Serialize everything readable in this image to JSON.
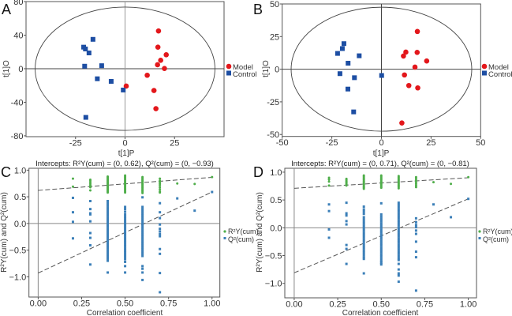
{
  "chart_data": [
    {
      "panel": "A",
      "type": "scatter",
      "xlabel": "t[1]P",
      "ylabel": "t[1]O",
      "xlim": [
        -50,
        50
      ],
      "ylim": [
        -81,
        80
      ],
      "xticks": [
        -25,
        0,
        25
      ],
      "yticks": [
        80,
        40,
        0,
        -40,
        -80
      ],
      "ellipse": {
        "rx": 45.4,
        "ry": 73.5
      },
      "legend": "right",
      "series": [
        {
          "name": "Model",
          "color": "#e3171b",
          "marker": "circle",
          "points": [
            [
              16.9,
              45
            ],
            [
              16.6,
              25.7
            ],
            [
              20.8,
              16.6
            ],
            [
              18.0,
              10
            ],
            [
              16.4,
              4.7
            ],
            [
              19.9,
              0.3
            ],
            [
              11.2,
              -7.8
            ],
            [
              0.6,
              -20.7
            ],
            [
              14.6,
              -26
            ],
            [
              15.6,
              -47.6
            ]
          ]
        },
        {
          "name": "Control",
          "color": "#1d4ea3",
          "marker": "square",
          "points": [
            [
              -20.9,
              25.7
            ],
            [
              -20.0,
              23.5
            ],
            [
              -18.2,
              18.8
            ],
            [
              -16.2,
              35
            ],
            [
              -20.4,
              3.0
            ],
            [
              -11.8,
              3.6
            ],
            [
              -14.0,
              -12
            ],
            [
              -7.0,
              -15.1
            ],
            [
              -0.9,
              -25.4
            ],
            [
              -19.8,
              -58
            ]
          ]
        }
      ]
    },
    {
      "panel": "B",
      "type": "scatter",
      "xlabel": "t[1]P",
      "ylabel": "t[1]O",
      "xlim": [
        -50,
        50
      ],
      "ylim": [
        -51.5,
        50
      ],
      "xticks": [
        -50,
        -25,
        0,
        25,
        50
      ],
      "yticks": [
        50,
        25,
        0,
        -25,
        -50
      ],
      "ellipse": {
        "rx": 45.5,
        "ry": 47.5
      },
      "legend": "right",
      "series": [
        {
          "name": "Model",
          "color": "#e3171b",
          "marker": "circle",
          "points": [
            [
              18.1,
              28.9
            ],
            [
              12.3,
              13.1
            ],
            [
              11.1,
              10.1
            ],
            [
              18.0,
              12.9
            ],
            [
              22.8,
              6.3
            ],
            [
              16.9,
              1.6
            ],
            [
              11.6,
              -4.4
            ],
            [
              13.8,
              -12.5
            ],
            [
              18.3,
              -14.3
            ],
            [
              10.3,
              -41.2
            ]
          ]
        },
        {
          "name": "Control",
          "color": "#1d4ea3",
          "marker": "square",
          "points": [
            [
              -22.1,
              12.1
            ],
            [
              -19.7,
              15.8
            ],
            [
              -18.9,
              19.6
            ],
            [
              -11.2,
              10.3
            ],
            [
              -16.8,
              4.6
            ],
            [
              -20.9,
              -3.4
            ],
            [
              -13.6,
              -6.5
            ],
            [
              -16.9,
              -15.2
            ],
            [
              -14.0,
              -32.7
            ],
            [
              0.1,
              -4.8
            ]
          ]
        }
      ]
    },
    {
      "panel": "C",
      "type": "scatter",
      "title": "Intercepts: R²Y(cum) = (0, 0.62), Q²(cum) = (0, −0.93)",
      "xlabel": "Correlation coefficient",
      "ylabel": "R²Y(cum) and Q²(cum)",
      "xlim": [
        -0.053,
        1.045
      ],
      "ylim": [
        -1.38,
        1.035
      ],
      "xticks": [
        "0.00",
        "0.25",
        "0.50",
        "0.75",
        "1.00"
      ],
      "yticks": [
        "1.0",
        "0.5",
        "0.0",
        "−0.5",
        "−1.0"
      ],
      "legend": "right",
      "lines": [
        {
          "name": "R²Y(cum) regression",
          "from": [
            0,
            0.62
          ],
          "to": [
            1,
            0.865
          ]
        },
        {
          "name": "Q²(cum) regression",
          "from": [
            0,
            -0.93
          ],
          "to": [
            1,
            0.59
          ]
        }
      ],
      "series": [
        {
          "name": "R²Y(cum)",
          "color": "#4fae4a",
          "marker": "circle",
          "columns": {
            "0.2": [
              0.84,
              0.69
            ],
            "0.3": [
              0.82,
              0.8,
              0.77,
              0.74,
              0.71,
              0.68,
              0.62
            ],
            "0.4": [
              0.88,
              0.86,
              0.84,
              0.82,
              0.8,
              0.78,
              0.76,
              0.74,
              0.72,
              0.7,
              0.68,
              0.66,
              0.64,
              0.62,
              0.6,
              0.58
            ],
            "0.5": [
              0.9,
              0.88,
              0.86,
              0.84,
              0.82,
              0.8,
              0.78,
              0.76,
              0.74,
              0.72,
              0.7,
              0.68,
              0.66,
              0.64,
              0.62,
              0.6,
              0.58
            ],
            "0.6": [
              0.87,
              0.85,
              0.83,
              0.81,
              0.79,
              0.77,
              0.75,
              0.73,
              0.71,
              0.69,
              0.67,
              0.65,
              0.63,
              0.61,
              0.59,
              0.57
            ],
            "0.7": [
              0.84,
              0.8,
              0.78,
              0.75,
              0.72,
              0.68,
              0.64,
              0.6,
              0.58
            ],
            "0.8": [
              0.75
            ],
            "0.9": [
              0.74
            ],
            "1.0": [
              0.87
            ]
          }
        },
        {
          "name": "Q²(cum)",
          "color": "#3b7fb8",
          "marker": "square",
          "columns": {
            "0.2": [
              0.48,
              0.21,
              0.03,
              -0.28
            ],
            "0.3": [
              0.42,
              0.27,
              0.19,
              0.17,
              0.04,
              -0.18,
              -0.27,
              -0.41,
              -0.77
            ],
            "0.4": [
              0.42,
              0.38,
              0.34,
              0.3,
              0.26,
              0.22,
              0.18,
              0.14,
              0.1,
              0.06,
              0.02,
              -0.02,
              -0.06,
              -0.1,
              -0.14,
              -0.18,
              -0.22,
              -0.26,
              -0.3,
              -0.34,
              -0.38,
              -0.42,
              -0.46,
              -0.5,
              -0.54,
              -0.58,
              -0.62,
              -0.66,
              -0.7,
              -0.92
            ],
            "0.5": [
              0.31,
              0.27,
              0.22,
              0.17,
              0.13,
              0.09,
              0.05,
              0.01,
              -0.03,
              -0.07,
              -0.11,
              -0.15,
              -0.19,
              -0.23,
              -0.27,
              -0.31,
              -0.35,
              -0.39,
              -0.43,
              -0.47,
              -0.51,
              -0.55,
              -0.59,
              -0.63,
              -0.67,
              -0.72,
              -0.8,
              -0.92
            ],
            "0.6": [
              0.49,
              0.31,
              0.27,
              0.23,
              0.19,
              0.15,
              0.11,
              0.07,
              0.03,
              -0.01,
              -0.05,
              -0.09,
              -0.13,
              -0.17,
              -0.21,
              -0.25,
              -0.29,
              -0.33,
              -0.37,
              -0.41,
              -0.45,
              -0.49,
              -0.53,
              -0.57,
              -0.61,
              -0.8,
              -0.85,
              -0.92,
              -1.06
            ],
            "0.7": [
              0.38,
              0.21,
              0.1,
              -0.02,
              -0.1,
              -0.15,
              -0.2,
              -0.24,
              -0.48,
              -0.57,
              -0.93,
              -1.29
            ],
            "0.8": [
              0.47
            ],
            "0.9": [
              0.24
            ],
            "1.0": [
              0.59
            ]
          }
        }
      ]
    },
    {
      "panel": "D",
      "type": "scatter",
      "title": "Intercepts: R²Y(cum) = (0, 0.71), Q²(cum) = (0, −0.81)",
      "xlabel": "Correlation coefficient",
      "ylabel": "R²Y(cum) and Q²(cum)",
      "xlim": [
        -0.054,
        1.047
      ],
      "ylim": [
        -1.26,
        1.07
      ],
      "xticks": [
        "0.00",
        "0.25",
        "0.50",
        "0.75",
        "1.00"
      ],
      "yticks": [
        "1.0",
        "0.5",
        "0.0",
        "−0.5",
        "−1.0"
      ],
      "legend": "right",
      "lines": [
        {
          "name": "R²Y(cum) regression",
          "from": [
            0,
            0.71
          ],
          "to": [
            1,
            0.9
          ]
        },
        {
          "name": "Q²(cum) regression",
          "from": [
            0,
            -0.81
          ],
          "to": [
            1,
            0.52
          ]
        }
      ],
      "series": [
        {
          "name": "R²Y(cum)",
          "color": "#4fae4a",
          "marker": "circle",
          "columns": {
            "0.2": [
              0.9,
              0.87,
              0.83,
              0.76
            ],
            "0.3": [
              0.88,
              0.86,
              0.84,
              0.82,
              0.8,
              0.78,
              0.76
            ],
            "0.4": [
              0.94,
              0.92,
              0.9,
              0.88,
              0.86,
              0.84,
              0.82,
              0.8,
              0.78,
              0.76,
              0.74,
              0.72,
              0.7
            ],
            "0.5": [
              0.94,
              0.92,
              0.9,
              0.88,
              0.86,
              0.84,
              0.82,
              0.8,
              0.78,
              0.76,
              0.74,
              0.72
            ],
            "0.6": [
              0.93,
              0.91,
              0.89,
              0.87,
              0.85,
              0.83,
              0.81,
              0.79,
              0.77,
              0.75,
              0.73,
              0.71
            ],
            "0.7": [
              0.91,
              0.88,
              0.85,
              0.82,
              0.79,
              0.76,
              0.73
            ],
            "0.8": [
              0.82
            ],
            "0.9": [
              0.79
            ],
            "1.0": [
              0.91
            ]
          }
        },
        {
          "name": "Q²(cum)",
          "color": "#3b7fb8",
          "marker": "square",
          "columns": {
            "0.2": [
              0.42,
              0.3,
              -0.03,
              -0.18
            ],
            "0.3": [
              0.45,
              0.26,
              0.22,
              0.12,
              0.06,
              -0.31,
              -0.38,
              -0.65
            ],
            "0.4": [
              0.38,
              0.33,
              0.29,
              0.25,
              0.19,
              0.15,
              0.11,
              0.07,
              0.03,
              -0.01,
              -0.05,
              -0.09,
              -0.13,
              -0.17,
              -0.21,
              -0.25,
              -0.29,
              -0.33,
              -0.37,
              -0.41,
              -0.45,
              -0.49,
              -0.53,
              -0.56,
              -0.82
            ],
            "0.5": [
              0.44,
              0.24,
              0.2,
              0.16,
              0.12,
              0.08,
              0.04,
              0.0,
              -0.04,
              -0.08,
              -0.12,
              -0.16,
              -0.2,
              -0.24,
              -0.28,
              -0.32,
              -0.36,
              -0.4,
              -0.44,
              -0.48,
              -0.52,
              -0.56,
              -0.6,
              -0.63,
              -0.66
            ],
            "0.6": [
              0.45,
              0.41,
              0.37,
              0.33,
              0.29,
              0.25,
              0.21,
              0.17,
              0.13,
              0.09,
              0.05,
              0.01,
              -0.03,
              -0.07,
              -0.11,
              -0.15,
              -0.19,
              -0.23,
              -0.27,
              -0.31,
              -0.35,
              -0.39,
              -0.43,
              -0.47,
              -0.51,
              -0.55,
              -0.58,
              -0.65,
              -0.75,
              -0.82,
              -0.86,
              -0.97
            ],
            "0.7": [
              0.17,
              0.1,
              0.05,
              0.01,
              -0.05,
              -0.11,
              -0.25,
              -0.43,
              -0.53,
              -1.13
            ],
            "0.8": [
              0.42
            ],
            "0.9": [
              0.19
            ],
            "1.0": [
              0.52
            ]
          }
        }
      ]
    }
  ]
}
